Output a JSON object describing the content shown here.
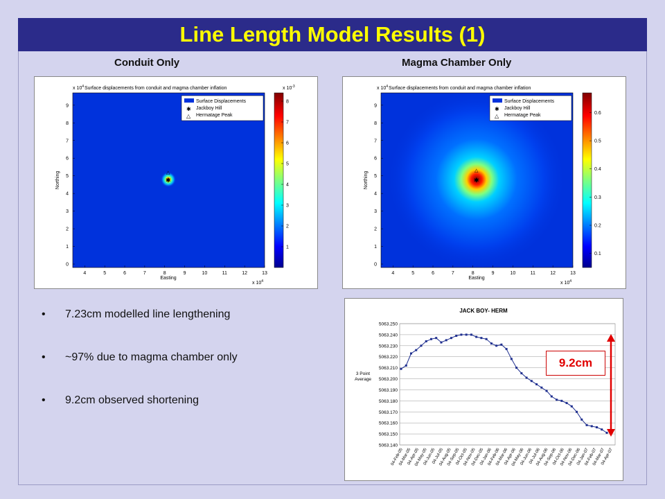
{
  "title": "Line Length Model Results (1)",
  "left_heading": "Conduit Only",
  "right_heading": "Magma Chamber Only",
  "plots": [
    {
      "title": "Surface displacements from conduit and magma chamber inflation",
      "xlabel": "Easting",
      "ylabel": "Northing",
      "x_exp": "x 10",
      "x_exp_power": "4",
      "y_exp": "x 10",
      "y_exp_power": "4",
      "x_ticks": [
        "4",
        "5",
        "6",
        "7",
        "8",
        "9",
        "10",
        "11",
        "12",
        "13"
      ],
      "y_ticks": [
        "0",
        "1",
        "2",
        "3",
        "4",
        "5",
        "6",
        "7",
        "8",
        "9"
      ],
      "cbar_exp": "x 10",
      "cbar_exp_power": "-3",
      "cbar_ticks": [
        "1",
        "2",
        "3",
        "4",
        "5",
        "6",
        "7",
        "8"
      ],
      "legend": [
        "Surface Displacements",
        "Jackboy Hill",
        "Hermatage Peak"
      ]
    },
    {
      "title": "Surface displacements from conduit and magma chamber inflation",
      "xlabel": "Easting",
      "ylabel": "Northing",
      "x_exp": "x 10",
      "x_exp_power": "4",
      "y_exp": "x 10",
      "y_exp_power": "4",
      "x_ticks": [
        "4",
        "5",
        "6",
        "7",
        "8",
        "9",
        "10",
        "11",
        "12",
        "13"
      ],
      "y_ticks": [
        "0",
        "1",
        "2",
        "3",
        "4",
        "5",
        "6",
        "7",
        "8",
        "9"
      ],
      "cbar_ticks": [
        "0.1",
        "0.2",
        "0.3",
        "0.4",
        "0.5",
        "0.6"
      ],
      "legend": [
        "Surface Displacements",
        "Jackboy Hill",
        "Hermatage Peak"
      ]
    }
  ],
  "bullets": [
    "7.23cm modelled line lengthening",
    "~97% due to magma chamber only",
    "9.2cm observed shortening"
  ],
  "annotation": "9.2cm",
  "chart_data": {
    "type": "line",
    "title": "JACK BOY- HERM",
    "ylabel": "3 Point Average",
    "ylim": [
      5063.14,
      5063.25
    ],
    "y_ticks": [
      "5063.250",
      "5063.240",
      "5063.230",
      "5063.220",
      "5063.210",
      "5063.200",
      "5063.190",
      "5063.180",
      "5063.170",
      "5063.160",
      "5063.150",
      "5063.140"
    ],
    "x_ticks": [
      "04-Feb-05",
      "04-Mar-05",
      "04-Apr-05",
      "04-May-05",
      "04-Jun-05",
      "04-Jul-05",
      "04-Aug-05",
      "04-Sep-05",
      "04-Oct-05",
      "04-Nov-05",
      "04-Dec-05",
      "04-Jan-06",
      "04-Feb-06",
      "04-Mar-06",
      "04-Apr-06",
      "04-May-06",
      "04-Jun-06",
      "04-Jul-06",
      "04-Aug-06",
      "04-Sep-06",
      "04-Oct-06",
      "04-Nov-06",
      "04-Dec-06",
      "04-Jan-07",
      "04-Feb-07",
      "04-Mar-07",
      "04-Apr-07"
    ],
    "series": [
      {
        "values": [
          5063.209,
          5063.212,
          5063.223,
          5063.226,
          5063.23,
          5063.234,
          5063.236,
          5063.237,
          5063.233,
          5063.235,
          5063.237,
          5063.239,
          5063.24,
          5063.24,
          5063.24,
          5063.238,
          5063.237,
          5063.236,
          5063.232,
          5063.23,
          5063.231,
          5063.227,
          5063.218,
          5063.21,
          5063.205,
          5063.201,
          5063.198,
          5063.195,
          5063.192,
          5063.189,
          5063.184,
          5063.181,
          5063.18,
          5063.178,
          5063.175,
          5063.17,
          5063.163,
          5063.158,
          5063.157,
          5063.156,
          5063.154,
          5063.151
        ]
      }
    ]
  }
}
